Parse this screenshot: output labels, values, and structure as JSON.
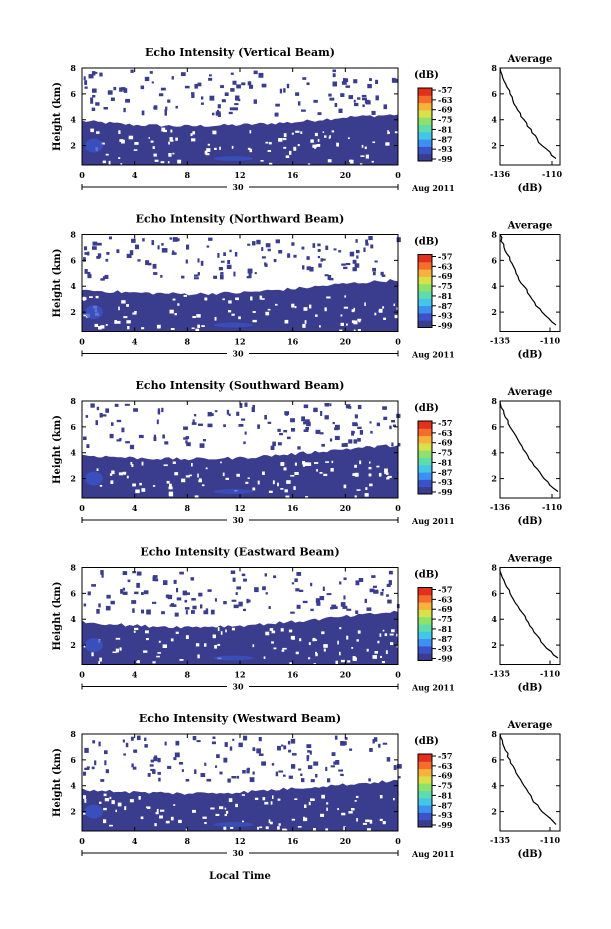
{
  "figure": {
    "xlabel": "Local Time",
    "colorbar_unit": "(dB)",
    "colorbar_ticks": [
      "-57",
      "-63",
      "-69",
      "-75",
      "-81",
      "-87",
      "-93",
      "-99"
    ],
    "colorbar_colors": [
      "#3a3c8e",
      "#3b52c8",
      "#3d8ff0",
      "#44c6e8",
      "#5fdcae",
      "#8ee26b",
      "#d8e04a",
      "#f7b23b",
      "#f46d2c",
      "#e2301d"
    ],
    "date_day": "30",
    "date_label": "Aug 2011",
    "avg_title": "Average",
    "avg_xlabel": "(dB)",
    "height_label": "Height (km)",
    "height_ticks": [
      "8",
      "6",
      "4",
      "2"
    ],
    "time_ticks": [
      "0",
      "4",
      "8",
      "12",
      "16",
      "20",
      "0"
    ],
    "base_color": "#3a3c8e"
  },
  "chart_data": [
    {
      "type": "heatmap",
      "title": "Echo Intensity (Vertical Beam)",
      "xlabel": "Local Time",
      "ylabel": "Height (km)",
      "xlim": [
        0,
        24
      ],
      "ylim": [
        0.5,
        8
      ],
      "cloud_top_km": [
        [
          0,
          3.9
        ],
        [
          4,
          3.6
        ],
        [
          8,
          3.5
        ],
        [
          12,
          3.6
        ],
        [
          16,
          3.8
        ],
        [
          20,
          4.2
        ],
        [
          24,
          4.4
        ]
      ],
      "avg": {
        "x_ticks": [
          "-136",
          "-110"
        ],
        "xlim": [
          -136,
          -106
        ],
        "y_ticks": [
          "8",
          "6",
          "4",
          "2"
        ],
        "points": [
          [
            -136,
            8
          ],
          [
            -134,
            7
          ],
          [
            -131,
            6
          ],
          [
            -128,
            5
          ],
          [
            -124,
            4
          ],
          [
            -120,
            3
          ],
          [
            -115,
            2
          ],
          [
            -108,
            1
          ]
        ]
      }
    },
    {
      "type": "heatmap",
      "title": "Echo Intensity (Northward Beam)",
      "xlabel": "Local Time",
      "ylabel": "Height (km)",
      "xlim": [
        0,
        24
      ],
      "ylim": [
        0.5,
        8
      ],
      "cloud_top_km": [
        [
          0,
          3.7
        ],
        [
          4,
          3.5
        ],
        [
          8,
          3.4
        ],
        [
          12,
          3.5
        ],
        [
          16,
          3.8
        ],
        [
          20,
          4.2
        ],
        [
          24,
          4.5
        ]
      ],
      "avg": {
        "x_ticks": [
          "-135",
          "-110"
        ],
        "xlim": [
          -135,
          -105
        ],
        "y_ticks": [
          "8",
          "6",
          "4",
          "2"
        ],
        "points": [
          [
            -135,
            8
          ],
          [
            -133,
            7
          ],
          [
            -130,
            6
          ],
          [
            -127,
            5
          ],
          [
            -123,
            4
          ],
          [
            -119,
            3
          ],
          [
            -114,
            2
          ],
          [
            -107,
            1
          ]
        ]
      }
    },
    {
      "type": "heatmap",
      "title": "Echo Intensity (Southward Beam)",
      "xlabel": "Local Time",
      "ylabel": "Height (km)",
      "xlim": [
        0,
        24
      ],
      "ylim": [
        0.5,
        8
      ],
      "cloud_top_km": [
        [
          0,
          3.8
        ],
        [
          4,
          3.6
        ],
        [
          8,
          3.5
        ],
        [
          12,
          3.6
        ],
        [
          16,
          3.9
        ],
        [
          20,
          4.3
        ],
        [
          24,
          4.6
        ]
      ],
      "avg": {
        "x_ticks": [
          "-136",
          "-110"
        ],
        "xlim": [
          -136,
          -106
        ],
        "y_ticks": [
          "8",
          "6",
          "4",
          "2"
        ],
        "points": [
          [
            -136,
            8
          ],
          [
            -134,
            7
          ],
          [
            -131,
            6
          ],
          [
            -127,
            5
          ],
          [
            -123,
            4
          ],
          [
            -119,
            3
          ],
          [
            -114,
            2
          ],
          [
            -107,
            1
          ]
        ]
      }
    },
    {
      "type": "heatmap",
      "title": "Echo Intensity (Eastward Beam)",
      "xlabel": "Local Time",
      "ylabel": "Height (km)",
      "xlim": [
        0,
        24
      ],
      "ylim": [
        0.5,
        8
      ],
      "cloud_top_km": [
        [
          0,
          3.8
        ],
        [
          4,
          3.5
        ],
        [
          8,
          3.4
        ],
        [
          12,
          3.5
        ],
        [
          16,
          3.8
        ],
        [
          20,
          4.2
        ],
        [
          24,
          4.6
        ]
      ],
      "avg": {
        "x_ticks": [
          "-135",
          "-110"
        ],
        "xlim": [
          -135,
          -105
        ],
        "y_ticks": [
          "8",
          "6",
          "4",
          "2"
        ],
        "points": [
          [
            -135,
            8
          ],
          [
            -133,
            7
          ],
          [
            -130,
            6
          ],
          [
            -126,
            5
          ],
          [
            -122,
            4
          ],
          [
            -118,
            3
          ],
          [
            -113,
            2
          ],
          [
            -106,
            1
          ]
        ]
      }
    },
    {
      "type": "heatmap",
      "title": "Echo Intensity (Westward Beam)",
      "xlabel": "Local Time",
      "ylabel": "Height (km)",
      "xlim": [
        0,
        24
      ],
      "ylim": [
        0.5,
        8
      ],
      "cloud_top_km": [
        [
          0,
          3.7
        ],
        [
          4,
          3.5
        ],
        [
          8,
          3.4
        ],
        [
          12,
          3.5
        ],
        [
          16,
          3.8
        ],
        [
          20,
          4.1
        ],
        [
          24,
          4.4
        ]
      ],
      "avg": {
        "x_ticks": [
          "-135",
          "-110"
        ],
        "xlim": [
          -135,
          -105
        ],
        "y_ticks": [
          "8",
          "6",
          "4",
          "2"
        ],
        "points": [
          [
            -135,
            8
          ],
          [
            -133,
            7
          ],
          [
            -130,
            6
          ],
          [
            -127,
            5
          ],
          [
            -123,
            4
          ],
          [
            -119,
            3
          ],
          [
            -114,
            2
          ],
          [
            -107,
            1
          ]
        ]
      }
    }
  ]
}
